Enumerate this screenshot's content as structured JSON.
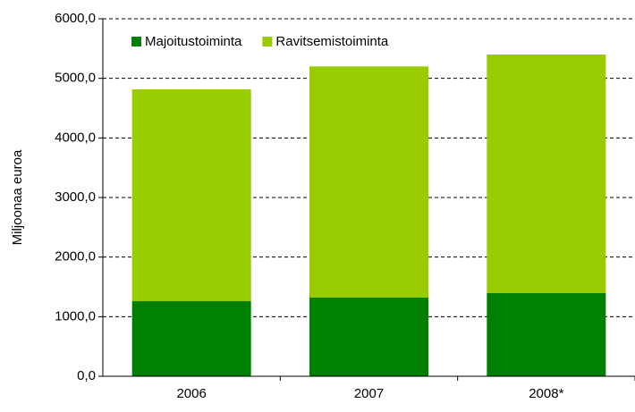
{
  "chart_data": {
    "type": "stacked_bar",
    "y_label": "Miljoonaa euroa",
    "categories": [
      "2006",
      "2007",
      "2008*"
    ],
    "series": [
      {
        "name": "Majoitustoiminta",
        "color": "#008000",
        "values": [
          1260,
          1320,
          1395
        ]
      },
      {
        "name": "Ravitsemistoiminta",
        "color": "#99cc00",
        "values": [
          3555,
          3880,
          4005
        ]
      }
    ],
    "ylim": [
      0,
      6000
    ],
    "yticks": [
      {
        "value": 0,
        "label": "0,0"
      },
      {
        "value": 1000,
        "label": "1000,0"
      },
      {
        "value": 2000,
        "label": "2000,0"
      },
      {
        "value": 3000,
        "label": "3000,0"
      },
      {
        "value": 4000,
        "label": "4000,0"
      },
      {
        "value": 5000,
        "label": "5000,0"
      },
      {
        "value": 6000,
        "label": "6000,0"
      }
    ],
    "grid": true,
    "legend": "top-left"
  }
}
